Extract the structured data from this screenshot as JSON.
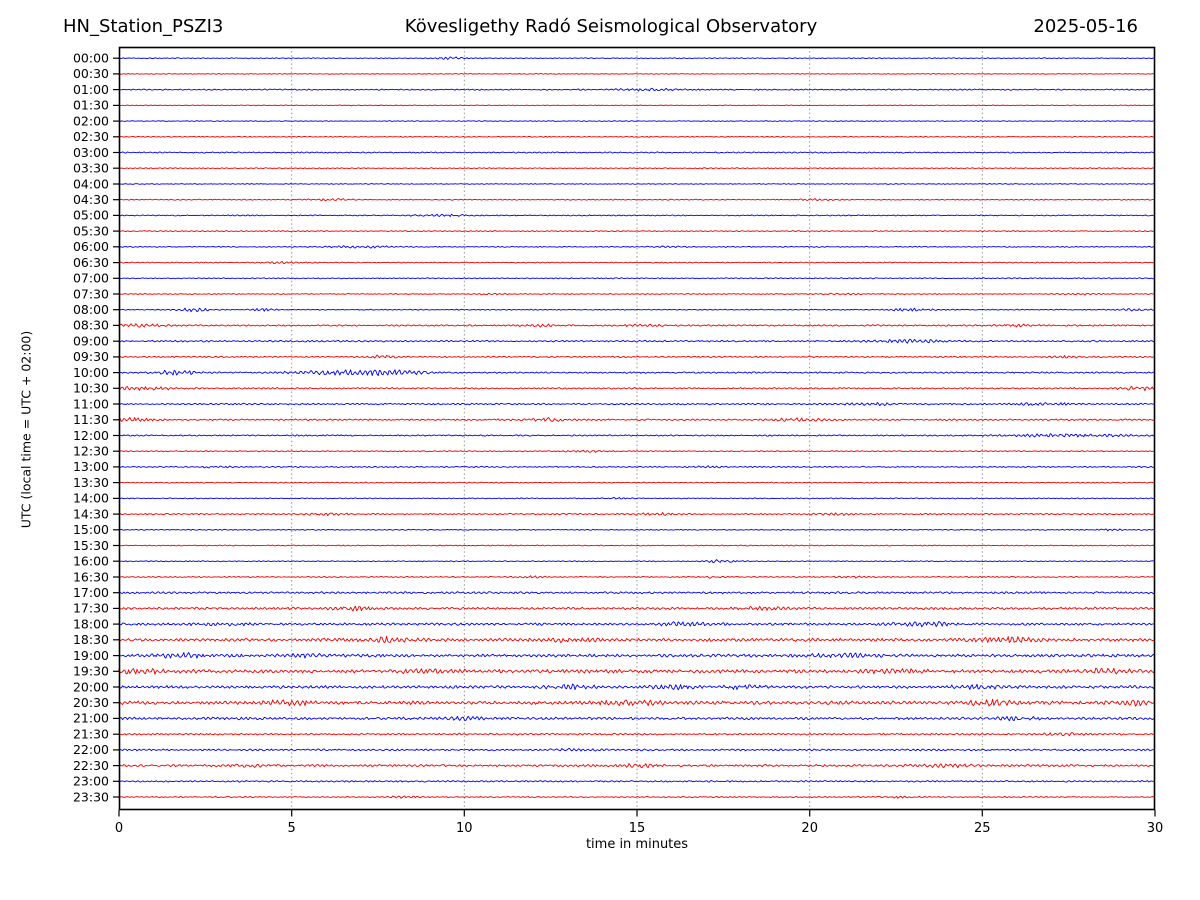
{
  "header": {
    "station": "HN_Station_PSZI3",
    "observatory": "Kövesligethy Radó Seismological Observatory",
    "date": "2025-05-16"
  },
  "chart_data": {
    "type": "line",
    "subtype": "helicorder-seismogram",
    "title": "Kövesligethy Radó Seismological Observatory",
    "station": "HN_Station_PSZI3",
    "date": "2025-05-16",
    "xlabel": "time in minutes",
    "ylabel": "UTC (local time = UTC + 02:00)",
    "x_range": [
      0,
      30
    ],
    "x_ticks": [
      0,
      5,
      10,
      15,
      20,
      25,
      30
    ],
    "grid_minutes": [
      5,
      10,
      15,
      20,
      25
    ],
    "grid_style": "dotted-vertical",
    "colors": {
      "hour": "#0000ee",
      "half_hour": "#ee0000",
      "grid": "#8a8a8a",
      "frame": "#000000"
    },
    "row_note": "48 traces, one per 30 min of UTC day; noise = background amplitude (px), events = [minute, extra amplitude px, width min]",
    "rows": [
      {
        "label": "00:00",
        "color": "hour",
        "noise": 0.45,
        "events": [
          [
            9.7,
            1.0,
            0.4
          ]
        ]
      },
      {
        "label": "00:30",
        "color": "half_hour",
        "noise": 0.4,
        "events": []
      },
      {
        "label": "01:00",
        "color": "hour",
        "noise": 0.6,
        "events": [
          [
            15.3,
            0.9,
            0.8
          ]
        ]
      },
      {
        "label": "01:30",
        "color": "half_hour",
        "noise": 0.4,
        "events": []
      },
      {
        "label": "02:00",
        "color": "hour",
        "noise": 0.4,
        "events": []
      },
      {
        "label": "02:30",
        "color": "half_hour",
        "noise": 0.45,
        "events": []
      },
      {
        "label": "03:00",
        "color": "hour",
        "noise": 0.6,
        "events": []
      },
      {
        "label": "03:30",
        "color": "half_hour",
        "noise": 0.5,
        "events": []
      },
      {
        "label": "04:00",
        "color": "hour",
        "noise": 0.4,
        "events": []
      },
      {
        "label": "04:30",
        "color": "half_hour",
        "noise": 0.5,
        "events": [
          [
            6.2,
            0.7,
            0.5
          ],
          [
            20.3,
            0.6,
            0.4
          ]
        ]
      },
      {
        "label": "05:00",
        "color": "hour",
        "noise": 0.55,
        "events": [
          [
            9.3,
            1.0,
            0.5
          ]
        ]
      },
      {
        "label": "05:30",
        "color": "half_hour",
        "noise": 0.5,
        "events": []
      },
      {
        "label": "06:00",
        "color": "hour",
        "noise": 0.5,
        "events": [
          [
            7.0,
            1.2,
            0.6
          ],
          [
            16.0,
            0.7,
            0.4
          ]
        ]
      },
      {
        "label": "06:30",
        "color": "half_hour",
        "noise": 0.5,
        "events": [
          [
            4.7,
            0.8,
            0.4
          ]
        ]
      },
      {
        "label": "07:00",
        "color": "hour",
        "noise": 0.55,
        "events": []
      },
      {
        "label": "07:30",
        "color": "half_hour",
        "noise": 0.5,
        "events": [
          [
            10.8,
            0.6,
            0.3
          ],
          [
            21.0,
            0.7,
            0.3
          ],
          [
            28.0,
            0.6,
            0.3
          ]
        ]
      },
      {
        "label": "08:00",
        "color": "hour",
        "noise": 0.5,
        "events": [
          [
            2.2,
            1.6,
            0.3
          ],
          [
            4.2,
            1.0,
            0.25
          ],
          [
            23.0,
            1.2,
            0.5
          ],
          [
            29.4,
            0.8,
            0.3
          ]
        ]
      },
      {
        "label": "08:30",
        "color": "half_hour",
        "noise": 0.75,
        "events": [
          [
            0.6,
            1.2,
            0.5
          ],
          [
            12.2,
            0.8,
            0.4
          ],
          [
            15.2,
            0.8,
            0.4
          ],
          [
            26.0,
            0.9,
            0.4
          ]
        ]
      },
      {
        "label": "09:00",
        "color": "hour",
        "noise": 0.8,
        "events": [
          [
            22.8,
            1.2,
            0.8
          ]
        ]
      },
      {
        "label": "09:30",
        "color": "half_hour",
        "noise": 0.65,
        "events": [
          [
            7.7,
            1.8,
            0.25
          ],
          [
            27.2,
            0.8,
            0.4
          ]
        ]
      },
      {
        "label": "10:00",
        "color": "hour",
        "noise": 0.75,
        "events": [
          [
            1.7,
            2.2,
            0.4
          ],
          [
            6.0,
            1.5,
            0.8
          ],
          [
            7.3,
            1.6,
            0.7
          ],
          [
            8.3,
            1.2,
            0.5
          ]
        ]
      },
      {
        "label": "10:30",
        "color": "half_hour",
        "noise": 0.75,
        "events": [
          [
            0.5,
            1.8,
            0.7
          ],
          [
            29.6,
            1.5,
            0.4
          ]
        ]
      },
      {
        "label": "11:00",
        "color": "hour",
        "noise": 0.8,
        "events": [
          [
            21.8,
            0.9,
            0.5
          ],
          [
            26.8,
            1.0,
            0.5
          ]
        ]
      },
      {
        "label": "11:30",
        "color": "half_hour",
        "noise": 0.8,
        "events": [
          [
            0.4,
            1.5,
            0.4
          ],
          [
            12.4,
            1.3,
            0.5
          ],
          [
            19.6,
            1.3,
            0.5
          ]
        ]
      },
      {
        "label": "12:00",
        "color": "hour",
        "noise": 0.7,
        "events": [
          [
            27.5,
            1.2,
            1.2
          ]
        ]
      },
      {
        "label": "12:30",
        "color": "half_hour",
        "noise": 0.55,
        "events": [
          [
            13.6,
            0.7,
            0.4
          ]
        ]
      },
      {
        "label": "13:00",
        "color": "hour",
        "noise": 0.6,
        "events": [
          [
            2.6,
            0.7,
            0.4
          ],
          [
            17.0,
            0.6,
            0.4
          ]
        ]
      },
      {
        "label": "13:30",
        "color": "half_hour",
        "noise": 0.5,
        "events": []
      },
      {
        "label": "14:00",
        "color": "hour",
        "noise": 0.5,
        "events": [
          [
            14.6,
            0.6,
            0.3
          ]
        ]
      },
      {
        "label": "14:30",
        "color": "half_hour",
        "noise": 0.7,
        "events": [
          [
            6.0,
            0.8,
            0.4
          ],
          [
            15.6,
            0.9,
            0.4
          ],
          [
            20.6,
            0.8,
            0.4
          ]
        ]
      },
      {
        "label": "15:00",
        "color": "hour",
        "noise": 0.5,
        "events": [
          [
            28.7,
            0.8,
            0.3
          ]
        ]
      },
      {
        "label": "15:30",
        "color": "half_hour",
        "noise": 0.5,
        "events": []
      },
      {
        "label": "16:00",
        "color": "hour",
        "noise": 0.5,
        "events": [
          [
            17.4,
            1.2,
            0.3
          ]
        ]
      },
      {
        "label": "16:30",
        "color": "half_hour",
        "noise": 0.55,
        "events": [
          [
            12.0,
            0.7,
            0.3
          ],
          [
            17.2,
            0.7,
            0.3
          ],
          [
            21.2,
            0.7,
            0.3
          ]
        ]
      },
      {
        "label": "17:00",
        "color": "hour",
        "noise": 1.0,
        "events": []
      },
      {
        "label": "17:30",
        "color": "half_hour",
        "noise": 1.15,
        "events": [
          [
            6.7,
            1.4,
            0.4
          ],
          [
            18.6,
            1.0,
            0.5
          ]
        ]
      },
      {
        "label": "18:00",
        "color": "hour",
        "noise": 1.15,
        "events": [
          [
            3.0,
            1.0,
            0.5
          ],
          [
            16.4,
            1.5,
            0.5
          ],
          [
            23.4,
            1.7,
            0.6
          ]
        ]
      },
      {
        "label": "18:30",
        "color": "half_hour",
        "noise": 1.5,
        "events": [
          [
            7.8,
            1.8,
            0.5
          ],
          [
            13.0,
            1.4,
            0.6
          ],
          [
            25.8,
            1.8,
            0.7
          ]
        ]
      },
      {
        "label": "19:00",
        "color": "hour",
        "noise": 1.4,
        "events": [
          [
            1.8,
            1.8,
            0.5
          ],
          [
            5.6,
            1.2,
            0.5
          ],
          [
            21.0,
            1.5,
            0.6
          ]
        ]
      },
      {
        "label": "19:30",
        "color": "half_hour",
        "noise": 1.7,
        "events": [
          [
            0.7,
            1.5,
            0.6
          ],
          [
            9.0,
            1.3,
            0.6
          ],
          [
            22.5,
            1.5,
            0.6
          ],
          [
            28.5,
            1.8,
            0.5
          ]
        ]
      },
      {
        "label": "20:00",
        "color": "hour",
        "noise": 1.4,
        "events": [
          [
            13.2,
            1.8,
            0.5
          ],
          [
            16.1,
            1.8,
            0.4
          ],
          [
            18.0,
            1.5,
            0.4
          ],
          [
            24.8,
            1.4,
            0.5
          ]
        ]
      },
      {
        "label": "20:30",
        "color": "half_hour",
        "noise": 1.7,
        "events": [
          [
            4.9,
            1.5,
            0.5
          ],
          [
            14.7,
            1.8,
            0.6
          ],
          [
            25.2,
            2.0,
            0.6
          ],
          [
            29.3,
            1.6,
            0.4
          ]
        ]
      },
      {
        "label": "21:00",
        "color": "hour",
        "noise": 1.25,
        "events": [
          [
            10.2,
            1.5,
            0.4
          ],
          [
            26.0,
            1.1,
            0.5
          ]
        ]
      },
      {
        "label": "21:30",
        "color": "half_hour",
        "noise": 0.85,
        "events": [
          [
            27.3,
            1.2,
            0.4
          ]
        ]
      },
      {
        "label": "22:00",
        "color": "hour",
        "noise": 0.9,
        "events": [
          [
            13.2,
            0.8,
            0.4
          ]
        ]
      },
      {
        "label": "22:30",
        "color": "half_hour",
        "noise": 1.1,
        "events": [
          [
            4.0,
            1.2,
            0.5
          ],
          [
            15.0,
            1.2,
            0.5
          ],
          [
            24.0,
            1.0,
            0.5
          ]
        ]
      },
      {
        "label": "23:00",
        "color": "hour",
        "noise": 0.8,
        "events": []
      },
      {
        "label": "23:30",
        "color": "half_hour",
        "noise": 0.55,
        "events": [
          [
            8.2,
            1.0,
            0.3
          ],
          [
            22.4,
            0.7,
            0.3
          ]
        ]
      }
    ]
  }
}
